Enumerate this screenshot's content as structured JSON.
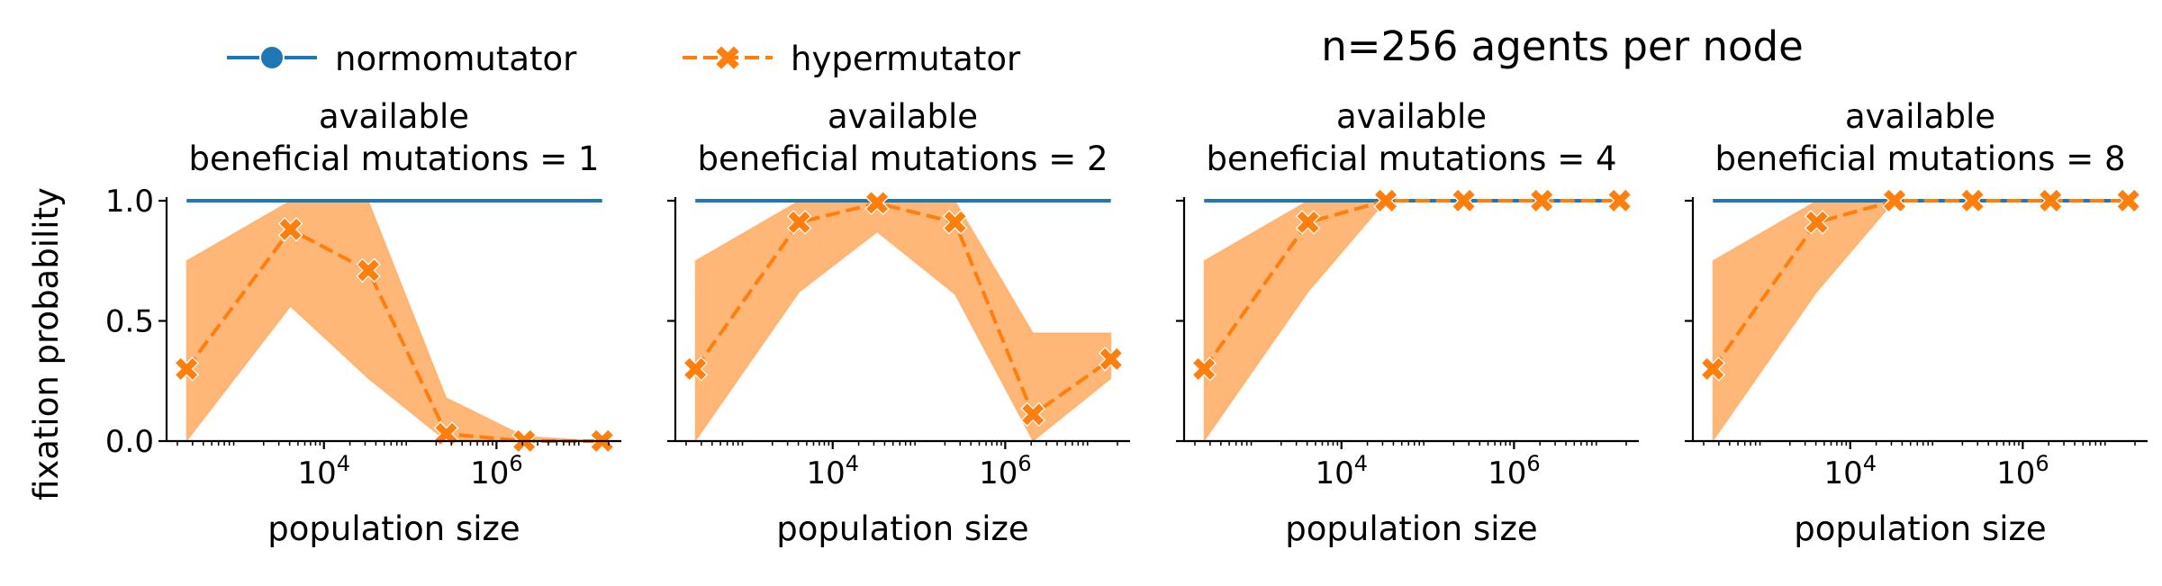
{
  "figure": {
    "suptitle": "n=256 agents per node",
    "ylabel": "fixation probability",
    "xlabel": "population size"
  },
  "legend": {
    "items": [
      {
        "label": "normomutator",
        "color": "#1f77b4",
        "marker": "circle",
        "style": "solid"
      },
      {
        "label": "hypermutator",
        "color": "#ff7f0e",
        "marker": "x-filled",
        "style": "dashed"
      }
    ]
  },
  "colors": {
    "normomutator": "#1f77b4",
    "hypermutator": "#ff7f0e"
  },
  "chart_data": [
    {
      "type": "line",
      "title": "available\nbeneficial mutations = 1",
      "xlabel": "population size",
      "ylabel": "fixation probability",
      "xscale": "log",
      "x": [
        256,
        4096,
        32768,
        262144,
        2097152,
        16777216
      ],
      "xtick_labels": [
        "10^4",
        "10^6"
      ],
      "xtick_values": [
        10000,
        1000000
      ],
      "ylim": [
        0,
        1
      ],
      "ytick_labels": [
        "0.0",
        "0.5",
        "1.0"
      ],
      "series": [
        {
          "name": "normomutator",
          "values": [
            1,
            1,
            1,
            1,
            1,
            1
          ],
          "ci_low": [
            1,
            1,
            1,
            1,
            1,
            1
          ],
          "ci_high": [
            1,
            1,
            1,
            1,
            1,
            1
          ]
        },
        {
          "name": "hypermutator",
          "values": [
            0.3,
            0.88,
            0.71,
            0.03,
            0.0,
            0.0
          ],
          "ci_low": [
            0,
            0.56,
            0.26,
            0,
            0,
            0
          ],
          "ci_high": [
            0.75,
            1.0,
            1.0,
            0.18,
            0.02,
            0.0
          ]
        }
      ]
    },
    {
      "type": "line",
      "title": "available\nbeneficial mutations = 2",
      "xlabel": "population size",
      "xscale": "log",
      "x": [
        256,
        4096,
        32768,
        262144,
        2097152,
        16777216
      ],
      "xtick_labels": [
        "10^4",
        "10^6"
      ],
      "xtick_values": [
        10000,
        1000000
      ],
      "ylim": [
        0,
        1
      ],
      "series": [
        {
          "name": "normomutator",
          "values": [
            1,
            1,
            1,
            1,
            1,
            1
          ],
          "ci_low": [
            1,
            1,
            1,
            1,
            1,
            1
          ],
          "ci_high": [
            1,
            1,
            1,
            1,
            1,
            1
          ]
        },
        {
          "name": "hypermutator",
          "values": [
            0.3,
            0.91,
            0.99,
            0.91,
            0.11,
            0.34
          ],
          "ci_low": [
            0,
            0.62,
            0.87,
            0.61,
            0,
            0.26
          ],
          "ci_high": [
            0.75,
            1.0,
            1.0,
            1.0,
            0.45,
            0.45
          ]
        }
      ]
    },
    {
      "type": "line",
      "title": "available\nbeneficial mutations = 4",
      "xlabel": "population size",
      "xscale": "log",
      "x": [
        256,
        4096,
        32768,
        262144,
        2097152,
        16777216
      ],
      "xtick_labels": [
        "10^4",
        "10^6"
      ],
      "xtick_values": [
        10000,
        1000000
      ],
      "ylim": [
        0,
        1
      ],
      "series": [
        {
          "name": "normomutator",
          "values": [
            1,
            1,
            1,
            1,
            1,
            1
          ],
          "ci_low": [
            1,
            1,
            1,
            1,
            1,
            1
          ],
          "ci_high": [
            1,
            1,
            1,
            1,
            1,
            1
          ]
        },
        {
          "name": "hypermutator",
          "values": [
            0.3,
            0.91,
            1.0,
            1.0,
            1.0,
            1.0
          ],
          "ci_low": [
            0,
            0.62,
            1.0,
            1.0,
            1.0,
            1.0
          ],
          "ci_high": [
            0.75,
            1.0,
            1.0,
            1.0,
            1.0,
            1.0
          ]
        }
      ]
    },
    {
      "type": "line",
      "title": "available\nbeneficial mutations = 8",
      "xlabel": "population size",
      "xscale": "log",
      "x": [
        256,
        4096,
        32768,
        262144,
        2097152,
        16777216
      ],
      "xtick_labels": [
        "10^4",
        "10^6"
      ],
      "xtick_values": [
        10000,
        1000000
      ],
      "ylim": [
        0,
        1
      ],
      "series": [
        {
          "name": "normomutator",
          "values": [
            1,
            1,
            1,
            1,
            1,
            1
          ],
          "ci_low": [
            1,
            1,
            1,
            1,
            1,
            1
          ],
          "ci_high": [
            1,
            1,
            1,
            1,
            1,
            1
          ]
        },
        {
          "name": "hypermutator",
          "values": [
            0.3,
            0.91,
            1.0,
            1.0,
            1.0,
            1.0
          ],
          "ci_low": [
            0,
            0.62,
            1.0,
            1.0,
            1.0,
            1.0
          ],
          "ci_high": [
            0.75,
            1.0,
            1.0,
            1.0,
            1.0,
            1.0
          ]
        }
      ]
    }
  ]
}
